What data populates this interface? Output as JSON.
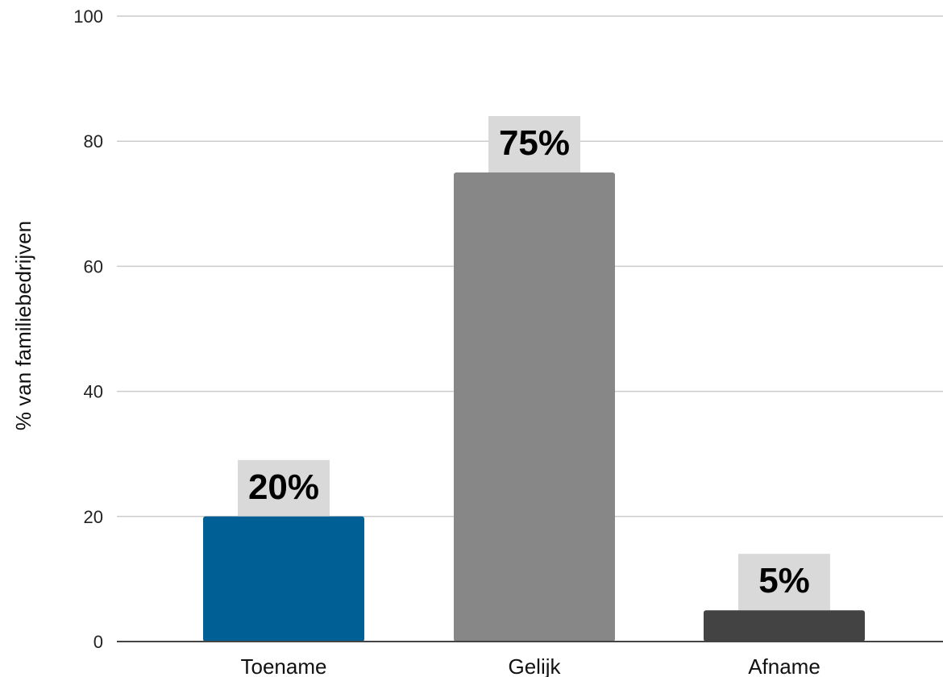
{
  "chart_data": {
    "type": "bar",
    "categories": [
      "Toename",
      "Gelijk",
      "Afname"
    ],
    "values": [
      20,
      75,
      5
    ],
    "data_labels": [
      "20%",
      "75%",
      "5%"
    ],
    "bar_colors": [
      "#005f94",
      "#878787",
      "#434343"
    ],
    "label_box_color": "#d9d9d9",
    "ylabel": "% van familiebedrijven",
    "xlabel": "",
    "title": "",
    "ylim": [
      0,
      100
    ],
    "yticks": [
      0,
      20,
      40,
      60,
      80,
      100
    ],
    "grid": true,
    "legend": "none"
  }
}
